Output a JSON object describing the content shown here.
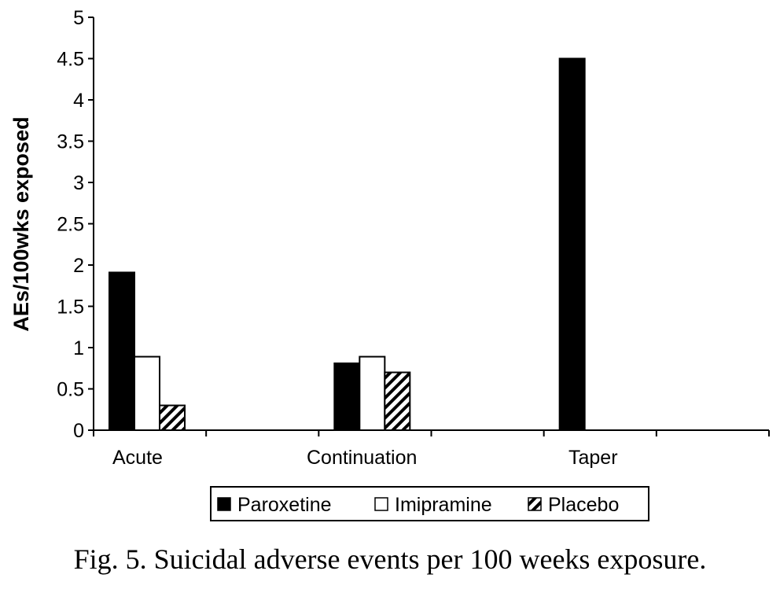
{
  "chart_data": {
    "type": "bar",
    "title": "",
    "xlabel": "",
    "ylabel": "AEs/100wks exposed",
    "ylim": [
      0,
      5
    ],
    "yticks": [
      "0",
      "0.5",
      "1",
      "1.5",
      "2",
      "2.5",
      "3",
      "3.5",
      "4",
      "4.5",
      "5"
    ],
    "grid": false,
    "categories": [
      "Acute",
      "Continuation",
      "Taper"
    ],
    "series": [
      {
        "name": "Paroxetine",
        "fill": "solid",
        "color": "#000000",
        "values": [
          1.91,
          0.81,
          4.5
        ]
      },
      {
        "name": "Imipramine",
        "fill": "white",
        "color": "#ffffff",
        "values": [
          0.89,
          0.89,
          0
        ]
      },
      {
        "name": "Placebo",
        "fill": "hatched",
        "color": "#000000",
        "values": [
          0.3,
          0.7,
          0
        ]
      }
    ],
    "legend_position": "bottom-center"
  },
  "caption": "Fig. 5.  Suicidal adverse events per 100 weeks exposure."
}
